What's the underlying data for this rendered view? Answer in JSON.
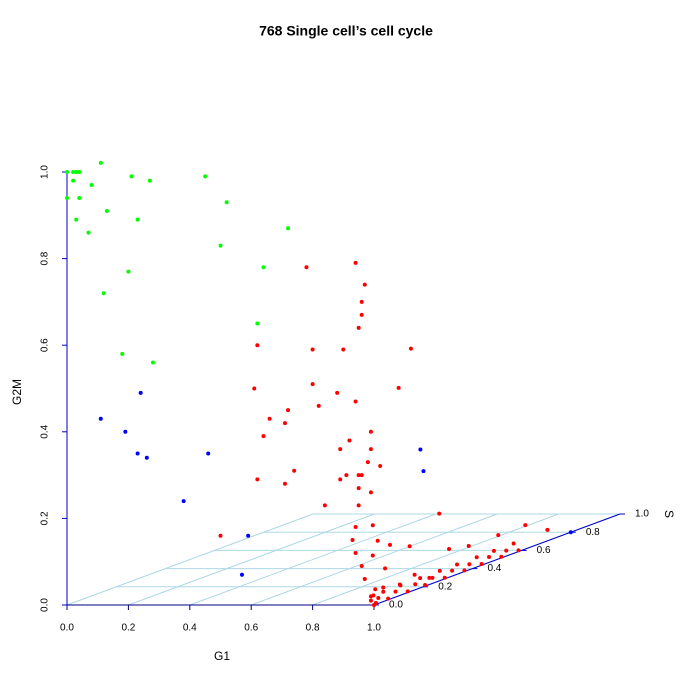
{
  "chart_data": {
    "type": "scatter3d",
    "title": "768 Single cell’s cell cycle",
    "xlabel": "G1",
    "ylabel": "S",
    "zlabel": "G2M",
    "xlim": [
      0,
      1
    ],
    "ylim": [
      0,
      1
    ],
    "zlim": [
      0,
      1
    ],
    "xticks": [
      {
        "value": 0,
        "label": "0.0"
      },
      0.2,
      0.4,
      0.6,
      0.8,
      {
        "value": 1,
        "label": "1.0"
      }
    ],
    "yticks": [
      {
        "value": 0,
        "label": "0.0"
      },
      0.2,
      0.4,
      0.6,
      0.8,
      {
        "value": 1,
        "label": "1.0"
      }
    ],
    "zticks": [
      {
        "value": 0,
        "label": "0.0"
      },
      0.2,
      0.4,
      0.6,
      0.8,
      {
        "value": 1,
        "label": "1.0"
      }
    ],
    "grid": true,
    "grid_color": "#add8e6",
    "series": [
      {
        "color": "#ff0000",
        "x": [
          0.78,
          0.94,
          0.97,
          0.96,
          0.96,
          0.95,
          0.62,
          0.8,
          0.9,
          0.96,
          0.61,
          0.8,
          0.96,
          0.88,
          0.82,
          0.94,
          0.72,
          0.66,
          0.71,
          0.64,
          0.99,
          0.92,
          0.89,
          0.99,
          0.98,
          0.94,
          0.74,
          0.91,
          0.95,
          0.89,
          0.96,
          0.62,
          0.71,
          0.95,
          0.99,
          0.84,
          0.95,
          0.5,
          0.98,
          0.98,
          0.93,
          0.94,
          0.98,
          0.98,
          0.98,
          0.98,
          0.98,
          0.98,
          0.98,
          0.98,
          0.98,
          0.98,
          0.96,
          0.97,
          0.98,
          0.98,
          0.94,
          0.98,
          0.99,
          0.99,
          0.99,
          0.99,
          0.99,
          0.99,
          0.99,
          0.99,
          0.99,
          0.99,
          0.99,
          0.99,
          0.99,
          0.99,
          0.99,
          0.99,
          0.99,
          0.99,
          0.99,
          0.99,
          0.99,
          0.99,
          0.99,
          0.99,
          0.99,
          0.99,
          0.99,
          1,
          0.99,
          0.99,
          0.98,
          0.99
        ],
        "y": [
          0,
          0,
          0,
          0,
          0,
          0,
          0,
          0,
          0,
          0.2,
          0,
          0,
          0.15,
          0,
          0,
          0,
          0,
          0,
          0,
          0,
          0,
          0,
          0,
          0,
          0,
          0.1,
          0,
          0,
          0,
          0,
          0,
          0,
          0,
          0,
          0,
          0,
          0,
          0,
          0.02,
          0.04,
          0,
          0,
          0.09,
          0.17,
          0.29,
          0.33,
          0.41,
          0.53,
          0.64,
          0.73,
          0.19,
          0.25,
          0,
          0,
          0.07,
          0.13,
          0,
          0.02,
          0,
          0.01,
          0.02,
          0.03,
          0.05,
          0.07,
          0.1,
          0.12,
          0.15,
          0.18,
          0.2,
          0.22,
          0.25,
          0.28,
          0.3,
          0.33,
          0.35,
          0.38,
          0.4,
          0.43,
          0.45,
          0.48,
          0.5,
          0.53,
          0.55,
          0.58,
          0.6,
          0,
          0.02,
          0,
          0.03,
          0.05
        ],
        "z": [
          0.78,
          0.79,
          0.74,
          0.7,
          0.67,
          0.64,
          0.6,
          0.59,
          0.59,
          0.55,
          0.5,
          0.51,
          0.47,
          0.49,
          0.46,
          0.47,
          0.45,
          0.43,
          0.42,
          0.39,
          0.4,
          0.38,
          0.36,
          0.36,
          0.33,
          0.3,
          0.31,
          0.3,
          0.3,
          0.29,
          0.3,
          0.29,
          0.28,
          0.27,
          0.26,
          0.23,
          0.23,
          0.16,
          0.18,
          0.14,
          0.15,
          0.12,
          0.12,
          0.1,
          0.15,
          0.06,
          0.05,
          0.05,
          0.05,
          0.02,
          0.03,
          0.01,
          0.09,
          0.06,
          0.07,
          0.02,
          0.18,
          0.11,
          0.01,
          0.02,
          0,
          0.01,
          0.02,
          0,
          0.01,
          0.02,
          0,
          0.01,
          0.02,
          0,
          0.01,
          0.02,
          0,
          0.01,
          0.02,
          0,
          0.01,
          0.02,
          0,
          0.01,
          0.02,
          0,
          0.01,
          0.02,
          0,
          0,
          0,
          0.02,
          0.03,
          0.03
        ]
      },
      {
        "color": "#00ff00",
        "x": [
          0,
          0.02,
          0.03,
          0.04,
          0.03,
          0.02,
          0.04,
          0.08,
          0.13,
          0.03,
          0.07,
          0.23,
          0.21,
          0.27,
          0.45,
          0.52,
          0.5,
          0.72,
          0.64,
          0.2,
          0.12,
          0.62,
          0.18,
          0.28,
          0
        ],
        "y": [
          0,
          0,
          0,
          0,
          0.1,
          0,
          0,
          0,
          0,
          0,
          0,
          0,
          0,
          0,
          0,
          0,
          0,
          0,
          0,
          0,
          0,
          0,
          0,
          0,
          0
        ],
        "z": [
          1.0,
          1.0,
          1.0,
          1.0,
          1.0,
          0.98,
          0.94,
          0.97,
          0.91,
          0.89,
          0.86,
          0.89,
          0.99,
          0.98,
          0.99,
          0.93,
          0.83,
          0.87,
          0.78,
          0.77,
          0.72,
          0.65,
          0.58,
          0.56,
          0.94
        ]
      },
      {
        "color": "#0000ff",
        "x": [
          0.11,
          0.24,
          0.19,
          0.23,
          0.26,
          0.46,
          0.38,
          0.59,
          0.57,
          0.43,
          0.44,
          1.0
        ],
        "y": [
          0,
          0,
          0,
          0,
          0,
          0,
          0,
          0,
          0,
          0.9,
          0.9,
          0.8
        ],
        "z": [
          0.43,
          0.49,
          0.4,
          0.35,
          0.34,
          0.35,
          0.24,
          0.16,
          0.07,
          0.17,
          0.12,
          0
        ]
      }
    ]
  }
}
